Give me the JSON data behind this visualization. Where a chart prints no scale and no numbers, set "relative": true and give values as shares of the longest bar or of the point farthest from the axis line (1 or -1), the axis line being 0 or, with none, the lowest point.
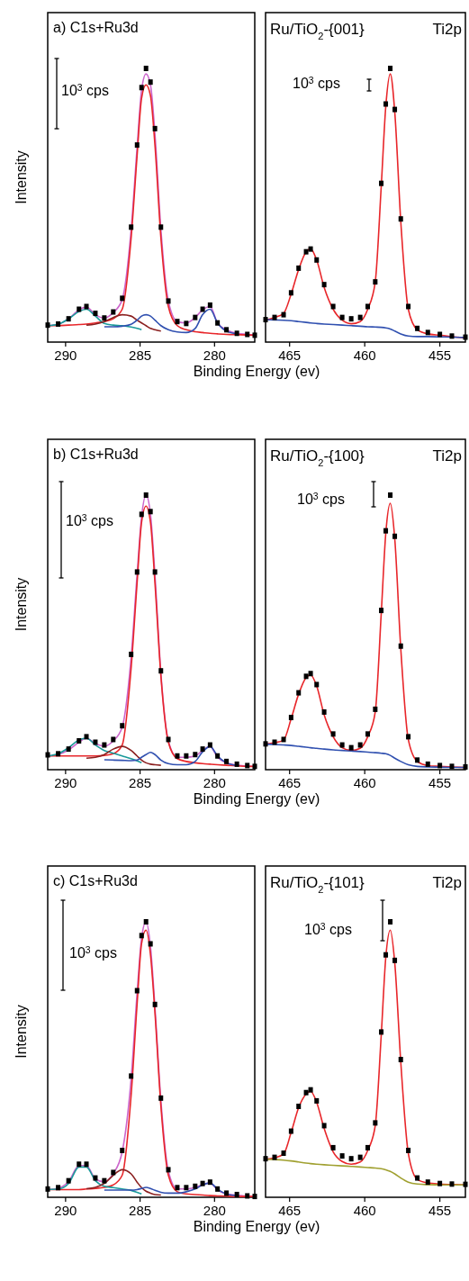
{
  "chart_data": [
    {
      "type": "line",
      "relative": true,
      "title": "a) C1s+Ru3d",
      "ylabel": "Intensity",
      "xlabel": "Binding Energy (ev)",
      "annotations": [
        "10$^{3}$ cps"
      ],
      "xlim": [
        291.2,
        277.3
      ],
      "xticks": [
        290,
        285,
        280
      ],
      "x": [
        291.2,
        290.5,
        289.8,
        289.1,
        288.6,
        288.0,
        287.4,
        286.8,
        286.2,
        285.6,
        285.2,
        284.9,
        284.6,
        284.3,
        284.0,
        283.6,
        283.1,
        282.5,
        281.9,
        281.3,
        280.8,
        280.3,
        279.8,
        279.2,
        278.5,
        277.8,
        277.3
      ],
      "series": [
        {
          "color": "#cc66cc",
          "values": [
            0.06,
            0.065,
            0.085,
            0.118,
            0.128,
            0.1,
            0.088,
            0.108,
            0.155,
            0.41,
            0.71,
            0.92,
            0.98,
            0.94,
            0.76,
            0.41,
            0.15,
            0.075,
            0.07,
            0.09,
            0.118,
            0.13,
            0.07,
            0.045,
            0.032,
            0.028,
            0.025
          ]
        },
        {
          "color": "#e8262a",
          "values": [
            0.06,
            0.06,
            0.062,
            0.064,
            0.066,
            0.07,
            0.075,
            0.085,
            0.12,
            0.38,
            0.68,
            0.89,
            0.94,
            0.9,
            0.72,
            0.38,
            0.13,
            0.06,
            0.045,
            0.038,
            0.035,
            0.032,
            0.03,
            0.028,
            0.027,
            0.026,
            0.025
          ]
        },
        {
          "color": "#1a9a9a",
          "values": [
            0.06,
            0.065,
            0.085,
            0.112,
            0.12,
            0.095,
            0.068,
            0.062,
            0.06,
            0.055,
            0.05,
            0.045,
            null,
            null,
            null,
            null,
            null,
            null,
            null,
            null,
            null,
            null,
            null,
            null,
            null,
            null,
            null
          ]
        },
        {
          "color": "#8b2020",
          "values": [
            null,
            null,
            null,
            null,
            0.062,
            0.066,
            0.075,
            0.09,
            0.1,
            0.095,
            0.08,
            0.07,
            0.06,
            0.05,
            0.045,
            0.04,
            null,
            null,
            null,
            null,
            null,
            null,
            null,
            null,
            null,
            null,
            null
          ]
        },
        {
          "color": "#3050b0",
          "values": [
            null,
            null,
            null,
            null,
            null,
            null,
            0.056,
            0.056,
            0.058,
            0.065,
            0.08,
            0.095,
            0.1,
            0.095,
            0.08,
            0.06,
            0.045,
            0.037,
            0.035,
            0.05,
            0.1,
            0.12,
            0.07,
            0.04,
            0.03,
            null,
            null
          ]
        },
        {
          "type": "scatter",
          "marker": "square",
          "color": "#000000",
          "values": [
            0.062,
            0.066,
            0.085,
            0.12,
            0.13,
            0.105,
            0.088,
            0.11,
            0.16,
            0.42,
            0.72,
            0.93,
            1.0,
            0.95,
            0.78,
            0.42,
            0.15,
            0.075,
            0.068,
            0.09,
            0.12,
            0.135,
            0.07,
            0.045,
            0.032,
            0.028,
            0.025
          ]
        }
      ]
    },
    {
      "type": "line",
      "relative": true,
      "title": "Ti2p",
      "subtitle": "Ru/TiO$_{2}$-{001}",
      "annotations": [
        "10$^{3}$ cps"
      ],
      "xlim": [
        466.6,
        453.3
      ],
      "xticks": [
        465,
        460,
        455
      ],
      "x": [
        466.6,
        466.0,
        465.4,
        464.9,
        464.4,
        463.9,
        463.6,
        463.2,
        462.7,
        462.1,
        461.5,
        460.9,
        460.3,
        459.8,
        459.3,
        458.9,
        458.6,
        458.3,
        458.0,
        457.6,
        457.1,
        456.5,
        455.8,
        455.0,
        454.2,
        453.3
      ],
      "series": [
        {
          "color": "#e8262a",
          "values": [
            0.08,
            0.09,
            0.105,
            0.175,
            0.265,
            0.33,
            0.34,
            0.3,
            0.2,
            0.12,
            0.08,
            0.067,
            0.075,
            0.12,
            0.22,
            0.57,
            0.86,
            0.98,
            0.84,
            0.44,
            0.12,
            0.045,
            0.03,
            0.025,
            0.02,
            0.015
          ]
        },
        {
          "color": "#3050b0",
          "values": [
            0.082,
            0.081,
            0.08,
            0.078,
            0.075,
            0.072,
            0.07,
            0.068,
            0.066,
            0.064,
            0.062,
            0.06,
            0.058,
            0.056,
            0.055,
            0.054,
            0.052,
            0.048,
            0.04,
            0.03,
            0.022,
            0.02,
            0.02,
            0.019,
            0.018,
            0.017
          ]
        },
        {
          "type": "scatter",
          "marker": "square",
          "color": "#000000",
          "values": [
            0.082,
            0.09,
            0.1,
            0.18,
            0.27,
            0.33,
            0.34,
            0.3,
            0.21,
            0.13,
            0.09,
            0.085,
            0.09,
            0.13,
            0.22,
            0.58,
            0.87,
            1.0,
            0.85,
            0.45,
            0.13,
            0.05,
            0.035,
            0.028,
            0.022,
            0.018
          ]
        }
      ]
    },
    {
      "type": "line",
      "relative": true,
      "title": "b) C1s+Ru3d",
      "ylabel": "Intensity",
      "xlabel": "Binding Energy (ev)",
      "annotations": [
        "10$^{3}$ cps"
      ],
      "xlim": [
        291.2,
        277.3
      ],
      "xticks": [
        290,
        285,
        280
      ],
      "x": [
        291.2,
        290.5,
        289.8,
        289.1,
        288.6,
        288.0,
        287.4,
        286.8,
        286.2,
        285.6,
        285.2,
        284.9,
        284.6,
        284.3,
        284.0,
        283.6,
        283.1,
        282.5,
        281.9,
        281.3,
        280.8,
        280.3,
        279.8,
        279.2,
        278.5,
        277.8,
        277.3
      ],
      "series": [
        {
          "color": "#cc66cc",
          "values": [
            0.05,
            0.055,
            0.072,
            0.1,
            0.115,
            0.095,
            0.086,
            0.105,
            0.155,
            0.41,
            0.71,
            0.92,
            1.0,
            0.93,
            0.71,
            0.35,
            0.105,
            0.045,
            0.045,
            0.05,
            0.07,
            0.085,
            0.045,
            0.025,
            0.017,
            0.013,
            0.012
          ]
        },
        {
          "color": "#e8262a",
          "values": [
            0.05,
            0.05,
            0.05,
            0.05,
            0.05,
            0.05,
            0.052,
            0.058,
            0.09,
            0.37,
            0.68,
            0.9,
            0.96,
            0.9,
            0.68,
            0.34,
            0.1,
            0.04,
            0.03,
            0.025,
            0.022,
            0.02,
            0.018,
            0.016,
            0.014,
            0.012,
            0.012
          ]
        },
        {
          "color": "#1a9a9a",
          "values": [
            0.05,
            0.058,
            0.08,
            0.108,
            0.115,
            0.09,
            0.07,
            0.06,
            0.05,
            0.04,
            0.032,
            0.025,
            null,
            null,
            null,
            null,
            null,
            null,
            null,
            null,
            null,
            null,
            null,
            null,
            null,
            null,
            null
          ]
        },
        {
          "color": "#8b2020",
          "values": [
            null,
            null,
            null,
            null,
            0.042,
            0.045,
            0.055,
            0.075,
            0.085,
            0.07,
            0.05,
            0.035,
            0.025,
            0.02,
            0.018,
            0.016,
            null,
            null,
            null,
            null,
            null,
            null,
            null,
            null,
            null,
            null,
            null
          ]
        },
        {
          "color": "#3050b0",
          "values": [
            null,
            null,
            null,
            null,
            null,
            null,
            0.036,
            0.035,
            0.034,
            0.033,
            0.035,
            0.045,
            0.055,
            0.063,
            0.055,
            0.035,
            0.022,
            0.018,
            0.018,
            0.03,
            0.065,
            0.085,
            0.05,
            0.025,
            0.015,
            null,
            null
          ]
        },
        {
          "type": "scatter",
          "marker": "square",
          "color": "#000000",
          "values": [
            0.054,
            0.058,
            0.075,
            0.105,
            0.12,
            0.1,
            0.09,
            0.11,
            0.16,
            0.42,
            0.72,
            0.93,
            1.0,
            0.94,
            0.72,
            0.36,
            0.11,
            0.05,
            0.05,
            0.055,
            0.075,
            0.09,
            0.05,
            0.03,
            0.02,
            0.015,
            0.012
          ]
        }
      ]
    },
    {
      "type": "line",
      "relative": true,
      "title": "Ti2p",
      "subtitle": "Ru/TiO$_{2}$-{100}",
      "annotations": [
        "10$^{3}$ cps"
      ],
      "xlim": [
        466.6,
        453.3
      ],
      "xticks": [
        465,
        460,
        455
      ],
      "x": [
        466.6,
        466.0,
        465.4,
        464.9,
        464.4,
        463.9,
        463.6,
        463.2,
        462.7,
        462.1,
        461.5,
        460.9,
        460.3,
        459.8,
        459.3,
        458.9,
        458.6,
        458.3,
        458.0,
        457.6,
        457.1,
        456.5,
        455.8,
        455.0,
        454.2,
        453.3
      ],
      "series": [
        {
          "color": "#e8262a",
          "values": [
            0.093,
            0.098,
            0.108,
            0.185,
            0.275,
            0.335,
            0.345,
            0.305,
            0.2,
            0.12,
            0.08,
            0.07,
            0.078,
            0.12,
            0.21,
            0.57,
            0.86,
            0.97,
            0.84,
            0.44,
            0.11,
            0.03,
            0.015,
            0.012,
            0.01,
            0.008
          ]
        },
        {
          "color": "#3050b0",
          "values": [
            0.093,
            0.092,
            0.09,
            0.088,
            0.085,
            0.082,
            0.08,
            0.078,
            0.075,
            0.072,
            0.07,
            0.068,
            0.066,
            0.064,
            0.062,
            0.06,
            0.058,
            0.052,
            0.042,
            0.03,
            0.018,
            0.012,
            0.01,
            0.009,
            0.008,
            0.008
          ]
        },
        {
          "type": "scatter",
          "marker": "square",
          "color": "#000000",
          "values": [
            0.094,
            0.1,
            0.11,
            0.19,
            0.28,
            0.34,
            0.35,
            0.31,
            0.21,
            0.13,
            0.09,
            0.08,
            0.09,
            0.13,
            0.22,
            0.58,
            0.87,
            1.0,
            0.85,
            0.45,
            0.12,
            0.035,
            0.02,
            0.015,
            0.012,
            0.01
          ]
        }
      ]
    },
    {
      "type": "line",
      "relative": true,
      "title": "c) C1s+Ru3d",
      "ylabel": "Intensity",
      "xlabel": "Binding Energy (ev)",
      "annotations": [
        "10$^{3}$ cps"
      ],
      "xlim": [
        291.2,
        277.3
      ],
      "xticks": [
        290,
        285,
        280
      ],
      "x": [
        291.2,
        290.5,
        289.8,
        289.1,
        288.6,
        288.0,
        287.4,
        286.8,
        286.2,
        285.6,
        285.2,
        284.9,
        284.6,
        284.3,
        284.0,
        283.6,
        283.1,
        282.5,
        281.9,
        281.3,
        280.8,
        280.3,
        279.8,
        279.2,
        278.5,
        277.8,
        277.3
      ],
      "series": [
        {
          "color": "#cc66cc",
          "values": [
            0.028,
            0.033,
            0.057,
            0.115,
            0.115,
            0.066,
            0.056,
            0.086,
            0.165,
            0.43,
            0.74,
            0.94,
            1.0,
            0.91,
            0.69,
            0.35,
            0.095,
            0.03,
            0.03,
            0.036,
            0.046,
            0.052,
            0.027,
            0.012,
            0.008,
            0.004,
            0.003
          ]
        },
        {
          "color": "#e8262a",
          "values": [
            0.028,
            0.028,
            0.028,
            0.028,
            0.03,
            0.032,
            0.036,
            0.045,
            0.08,
            0.37,
            0.7,
            0.92,
            0.97,
            0.88,
            0.67,
            0.33,
            0.08,
            0.02,
            0.012,
            0.01,
            0.008,
            0.006,
            0.005,
            0.004,
            0.003,
            0.003,
            0.003
          ]
        },
        {
          "color": "#1a9a9a",
          "values": [
            0.028,
            0.03,
            0.05,
            0.11,
            0.11,
            0.06,
            0.04,
            0.035,
            0.03,
            0.025,
            0.018,
            0.012,
            null,
            null,
            null,
            null,
            null,
            null,
            null,
            null,
            null,
            null,
            null,
            null,
            null,
            null,
            null
          ]
        },
        {
          "color": "#8b2020",
          "values": [
            null,
            null,
            null,
            null,
            0.031,
            0.036,
            0.05,
            0.08,
            0.1,
            0.085,
            0.055,
            0.035,
            0.022,
            0.015,
            0.01,
            0.008,
            null,
            null,
            null,
            null,
            null,
            null,
            null,
            null,
            null,
            null,
            null
          ]
        },
        {
          "color": "#3050b0",
          "values": [
            null,
            null,
            null,
            null,
            null,
            null,
            0.026,
            0.026,
            0.026,
            0.026,
            0.028,
            0.032,
            0.036,
            0.032,
            0.025,
            0.018,
            0.015,
            0.015,
            0.02,
            0.03,
            0.045,
            0.052,
            0.03,
            0.012,
            0.006,
            null,
            null
          ]
        },
        {
          "type": "scatter",
          "marker": "square",
          "color": "#000000",
          "values": [
            0.03,
            0.035,
            0.06,
            0.12,
            0.12,
            0.07,
            0.06,
            0.09,
            0.17,
            0.44,
            0.75,
            0.95,
            1.0,
            0.92,
            0.7,
            0.36,
            0.1,
            0.035,
            0.035,
            0.04,
            0.05,
            0.055,
            0.03,
            0.015,
            0.01,
            0.005,
            0.003
          ]
        }
      ]
    },
    {
      "type": "line",
      "relative": true,
      "title": "Ti2p",
      "subtitle": "Ru/TiO$_{2}$-{101}",
      "annotations": [
        "10$^{3}$ cps"
      ],
      "xlim": [
        466.6,
        453.3
      ],
      "xticks": [
        465,
        460,
        455
      ],
      "x": [
        466.6,
        466.0,
        465.4,
        464.9,
        464.4,
        463.9,
        463.6,
        463.2,
        462.7,
        462.1,
        461.5,
        460.9,
        460.3,
        459.8,
        459.3,
        458.9,
        458.6,
        458.3,
        458.0,
        457.6,
        457.1,
        456.5,
        455.8,
        455.0,
        454.2,
        453.3
      ],
      "series": [
        {
          "color": "#e8262a",
          "values": [
            0.138,
            0.143,
            0.157,
            0.235,
            0.325,
            0.375,
            0.385,
            0.345,
            0.25,
            0.165,
            0.13,
            0.12,
            0.128,
            0.17,
            0.26,
            0.59,
            0.87,
            0.97,
            0.85,
            0.49,
            0.16,
            0.065,
            0.052,
            0.048,
            0.046,
            0.045
          ]
        },
        {
          "color": "#a0a030",
          "values": [
            0.138,
            0.137,
            0.135,
            0.132,
            0.128,
            0.124,
            0.122,
            0.12,
            0.118,
            0.116,
            0.114,
            0.112,
            0.11,
            0.108,
            0.106,
            0.104,
            0.1,
            0.094,
            0.085,
            0.07,
            0.055,
            0.048,
            0.046,
            0.045,
            0.045,
            0.045
          ]
        },
        {
          "type": "scatter",
          "marker": "square",
          "color": "#000000",
          "values": [
            0.14,
            0.145,
            0.16,
            0.24,
            0.33,
            0.38,
            0.39,
            0.35,
            0.26,
            0.18,
            0.15,
            0.14,
            0.145,
            0.18,
            0.27,
            0.6,
            0.88,
            1.0,
            0.86,
            0.5,
            0.17,
            0.07,
            0.055,
            0.05,
            0.048,
            0.047
          ]
        }
      ]
    }
  ]
}
